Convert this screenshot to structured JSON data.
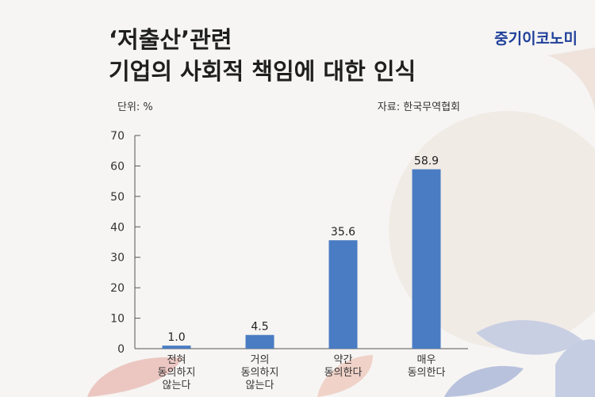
{
  "header": {
    "title_line1": "‘저출산’관련",
    "title_line2": "기업의 사회적 책임에 대한 인식",
    "brand": "중기이코노미",
    "unit_label": "단위: %",
    "source_label": "자료: 한국무역협회"
  },
  "colors": {
    "bar": "#4a7cc3",
    "axis": "#555555",
    "background": "#f6f5f3",
    "brand": "#1f3f9a"
  },
  "chart_data": {
    "type": "bar",
    "title": "‘저출산’관련 기업의 사회적 책임에 대한 인식",
    "xlabel": "",
    "ylabel": "",
    "ylim": [
      0,
      70
    ],
    "yticks": [
      0,
      10,
      20,
      30,
      40,
      50,
      60,
      70
    ],
    "grid": false,
    "categories": [
      [
        "전혀",
        "동의하지",
        "않는다"
      ],
      [
        "거의",
        "동의하지",
        "않는다"
      ],
      [
        "약간",
        "동의한다"
      ],
      [
        "매우",
        "동의한다"
      ]
    ],
    "values": [
      1.0,
      4.5,
      35.6,
      58.9
    ],
    "value_labels": [
      "1.0",
      "4.5",
      "35.6",
      "58.9"
    ]
  }
}
